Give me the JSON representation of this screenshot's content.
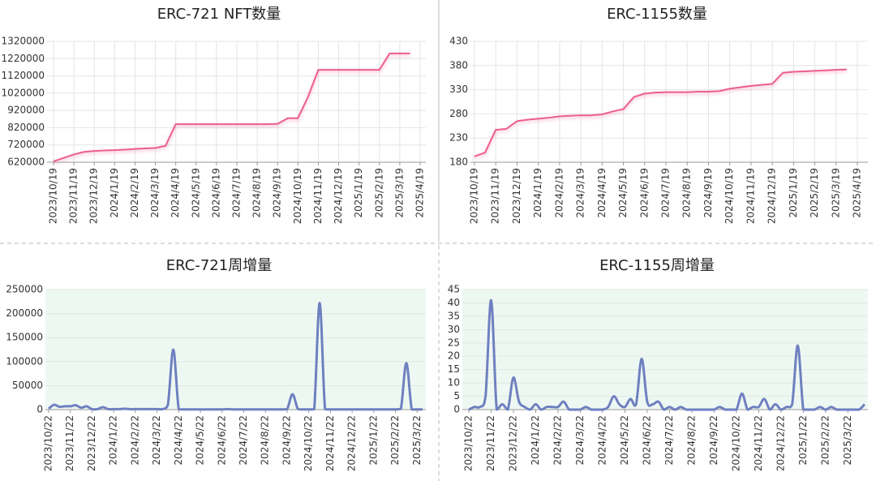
{
  "chart_data": [
    {
      "type": "line",
      "title": "ERC-721 NFT数量",
      "color": "#ec5f8c",
      "grid": true,
      "categories": [
        "2023/10/19",
        null,
        "2023/11/19",
        null,
        "2023/12/19",
        null,
        "2024/1/19",
        null,
        "2024/2/19",
        null,
        "2024/3/19",
        null,
        "2024/4/19",
        null,
        "2024/5/19",
        null,
        "2024/6/19",
        null,
        "2024/7/19",
        null,
        "2024/8/19",
        null,
        "2024/9/19",
        null,
        "2024/10/19",
        null,
        "2024/11/19",
        null,
        "2024/12/19",
        null,
        "2025/1/19",
        null,
        "2025/2/19",
        null,
        "2025/3/19",
        null,
        "2025/4/19"
      ],
      "values": [
        625000,
        645000,
        665000,
        680000,
        685000,
        688000,
        690000,
        693000,
        697000,
        700000,
        703000,
        715000,
        840000,
        840000,
        840000,
        840000,
        840000,
        840000,
        840000,
        840000,
        840000,
        840000,
        842000,
        875000,
        875000,
        1000000,
        1155000,
        1155000,
        1155000,
        1155000,
        1155000,
        1155000,
        1155000,
        1250000,
        1250000,
        1250000,
        null
      ],
      "ylim": [
        620000,
        1320000
      ],
      "yticks": [
        620000,
        720000,
        820000,
        920000,
        1020000,
        1120000,
        1220000,
        1320000
      ]
    },
    {
      "type": "line",
      "title": "ERC-1155数量",
      "color": "#ec5f8c",
      "grid": true,
      "categories": [
        "2023/10/19",
        null,
        "2023/11/19",
        null,
        "2023/12/19",
        null,
        "2024/1/19",
        null,
        "2024/2/19",
        null,
        "2024/3/19",
        null,
        "2024/4/19",
        null,
        "2024/5/19",
        null,
        "2024/6/19",
        null,
        "2024/7/19",
        null,
        "2024/8/19",
        null,
        "2024/9/19",
        null,
        "2024/10/19",
        null,
        "2024/11/19",
        null,
        "2024/12/19",
        null,
        "2025/1/19",
        null,
        "2025/2/19",
        null,
        "2025/3/19",
        null,
        "2025/4/19"
      ],
      "values": [
        192,
        200,
        247,
        249,
        265,
        268,
        270,
        272,
        275,
        276,
        277,
        277,
        279,
        285,
        290,
        315,
        322,
        324,
        325,
        325,
        325,
        326,
        326,
        327,
        332,
        335,
        338,
        340,
        342,
        365,
        367,
        368,
        369,
        370,
        371,
        372,
        null
      ],
      "ylim": [
        180,
        430
      ],
      "yticks": [
        180,
        230,
        280,
        330,
        380,
        430
      ]
    },
    {
      "type": "line",
      "title": "ERC-721周增量",
      "color": "#6f80c0",
      "grid": true,
      "smooth": true,
      "categories": [
        "2023/10/22",
        null,
        null,
        null,
        "2023/11/22",
        null,
        null,
        null,
        "2023/12/22",
        null,
        null,
        null,
        "2024/1/22",
        null,
        null,
        null,
        "2024/2/22",
        null,
        null,
        null,
        "2024/3/22",
        null,
        null,
        null,
        "2024/4/22",
        null,
        null,
        null,
        "2024/5/22",
        null,
        null,
        null,
        "2024/6/22",
        null,
        null,
        null,
        "2024/7/22",
        null,
        null,
        null,
        "2024/8/22",
        null,
        null,
        null,
        "2024/9/22",
        null,
        null,
        null,
        "2024/10/22",
        null,
        null,
        null,
        "2024/11/22",
        null,
        null,
        null,
        "2024/12/22",
        null,
        null,
        null,
        "2025/1/22",
        null,
        null,
        null,
        "2025/2/22",
        null,
        null,
        null,
        "2025/3/22",
        null
      ],
      "values": [
        2000,
        10000,
        6000,
        7000,
        7000,
        9000,
        4000,
        7000,
        1000,
        1000,
        5000,
        1000,
        1000,
        1000,
        2000,
        1000,
        1000,
        1000,
        1000,
        1000,
        1000,
        1000,
        10000,
        125000,
        1000,
        500,
        500,
        500,
        500,
        500,
        500,
        500,
        500,
        1000,
        500,
        500,
        500,
        500,
        500,
        500,
        500,
        500,
        500,
        500,
        1000,
        32000,
        1000,
        500,
        500,
        1000,
        222000,
        1000,
        500,
        500,
        500,
        500,
        500,
        500,
        500,
        500,
        500,
        500,
        500,
        500,
        500,
        2000,
        97000,
        500,
        500,
        500
      ],
      "ylim": [
        0,
        250000
      ],
      "yticks": [
        0,
        50000,
        100000,
        150000,
        200000,
        250000
      ]
    },
    {
      "type": "line",
      "title": "ERC-1155周增量",
      "color": "#6f80c0",
      "grid": true,
      "smooth": true,
      "categories": [
        "2023/10/22",
        null,
        null,
        null,
        "2023/11/22",
        null,
        null,
        null,
        "2023/12/22",
        null,
        null,
        null,
        "2024/1/22",
        null,
        null,
        null,
        "2024/2/22",
        null,
        null,
        null,
        "2024/3/22",
        null,
        null,
        null,
        "2024/4/22",
        null,
        null,
        null,
        "2024/5/22",
        null,
        null,
        null,
        "2024/6/22",
        null,
        null,
        null,
        "2024/7/22",
        null,
        null,
        null,
        "2024/8/22",
        null,
        null,
        null,
        "2024/9/22",
        null,
        null,
        null,
        "2024/10/22",
        null,
        null,
        null,
        "2024/11/22",
        null,
        null,
        null,
        "2024/12/22",
        null,
        null,
        null,
        "2025/1/22",
        null,
        null,
        null,
        "2025/2/22",
        null,
        null,
        null,
        "2025/3/22",
        null,
        null,
        null
      ],
      "values": [
        0,
        1,
        1,
        5,
        41,
        0,
        2,
        0,
        12,
        3,
        1,
        0,
        2,
        0,
        1,
        1,
        1,
        3,
        0,
        0,
        0,
        1,
        0,
        0,
        0,
        1,
        5,
        2,
        1,
        4,
        2,
        19,
        3,
        2,
        3,
        0,
        1,
        0,
        1,
        0,
        0,
        0,
        0,
        0,
        0,
        1,
        0,
        0,
        0,
        6,
        0,
        1,
        1,
        4,
        0,
        2,
        0,
        1,
        2,
        24,
        0,
        0,
        0,
        1,
        0,
        1,
        0,
        0,
        0,
        0,
        0,
        2
      ],
      "ylim": [
        0,
        45
      ],
      "yticks": [
        0,
        5,
        10,
        15,
        20,
        25,
        30,
        35,
        40,
        45
      ]
    }
  ]
}
